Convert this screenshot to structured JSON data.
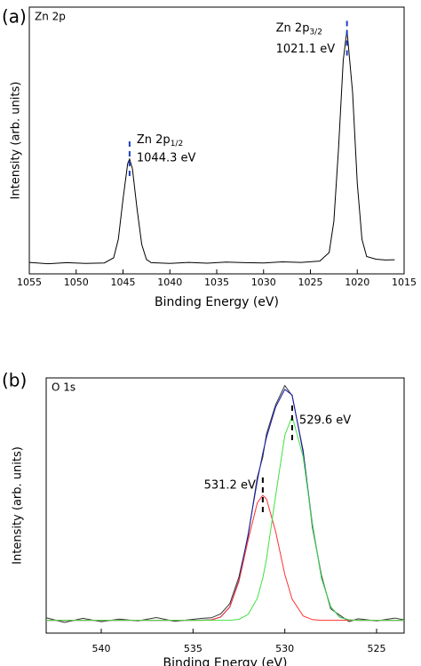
{
  "chart_data": [
    {
      "type": "line",
      "panel_label": "(a)",
      "title": "Zn 2p",
      "xlabel": "Binding Energy (eV)",
      "ylabel": "Intensity (arb. units)",
      "x": [
        1055,
        1053,
        1051,
        1049,
        1047,
        1046,
        1045.5,
        1045,
        1044.5,
        1044.3,
        1044,
        1043.5,
        1043,
        1042.5,
        1042,
        1040,
        1038,
        1036,
        1034,
        1032,
        1030,
        1028,
        1026,
        1024,
        1023,
        1022.5,
        1022,
        1021.5,
        1021.1,
        1020.5,
        1020,
        1019.5,
        1019,
        1018,
        1017,
        1016
      ],
      "series": [
        {
          "color": "#000000",
          "values": [
            4.3,
            3.8,
            4.2,
            3.9,
            4.1,
            6,
            13,
            28,
            41.4,
            43,
            39.5,
            24.3,
            11,
            5.4,
            4.2,
            3.9,
            4.3,
            4.0,
            4.4,
            4.2,
            4.1,
            4.5,
            4.3,
            4.8,
            8,
            19.7,
            47,
            80,
            91.5,
            68,
            34,
            13,
            6.5,
            5.5,
            5.2,
            5.3
          ]
        }
      ],
      "xlim": [
        1055,
        1015
      ],
      "xticks": [
        1055,
        1050,
        1045,
        1040,
        1035,
        1030,
        1025,
        1020,
        1015
      ],
      "ylim": [
        0,
        100
      ],
      "annotations": [
        {
          "name": "Zn 2p",
          "sub": "1/2",
          "text": "1044.3 eV",
          "x": 1044.3,
          "color": "#1f3fbf"
        },
        {
          "name": "Zn 2p",
          "sub": "3/2",
          "text": "1021.1 eV",
          "x": 1021.1,
          "color": "#1f3fbf"
        }
      ]
    },
    {
      "type": "line",
      "panel_label": "(b)",
      "title": "O 1s",
      "xlabel": "Binding Energy (eV)",
      "ylabel": "Intensity (arb. units)",
      "x": [
        543,
        542,
        541,
        540,
        539,
        538,
        537,
        536,
        535,
        534.5,
        534,
        533.5,
        533,
        532.5,
        532,
        531.5,
        531.2,
        531,
        530.5,
        530,
        529.6,
        529,
        528.5,
        528,
        527.5,
        527,
        526.5,
        526,
        525,
        524,
        523.5
      ],
      "series": [
        {
          "color": "#333333",
          "values": [
            6,
            4.2,
            5.8,
            4.5,
            5.5,
            4.8,
            6.1,
            4.6,
            5.4,
            5.8,
            6,
            7.5,
            11.5,
            22,
            38,
            61,
            69,
            78,
            89.5,
            97,
            93,
            71.5,
            41.5,
            22.5,
            9.5,
            7,
            4.5,
            5.6,
            4.8,
            5.9,
            5.2
          ]
        },
        {
          "color": "#1a1aa6",
          "values": [
            5,
            5,
            5,
            5,
            5,
            5,
            5,
            5,
            5,
            5.1,
            5.2,
            6.3,
            10.2,
            20.6,
            38.7,
            59.6,
            70.5,
            76.6,
            88.6,
            95.5,
            93.3,
            70.7,
            42.9,
            21.5,
            10.3,
            6.2,
            5.2,
            5,
            5,
            5,
            5
          ]
        },
        {
          "color": "#ff3030",
          "values": [
            5,
            5,
            5,
            5,
            5,
            5,
            5,
            5,
            5,
            5,
            5.2,
            6.3,
            10.2,
            20.2,
            36.4,
            51,
            54,
            52.6,
            39.8,
            23,
            13.3,
            6.7,
            5.3,
            5,
            5,
            5,
            5,
            5,
            5,
            5,
            5
          ]
        },
        {
          "color": "#40e040",
          "values": [
            5,
            5,
            5,
            5,
            5,
            5,
            5,
            5,
            5,
            5,
            5,
            5,
            5,
            5.4,
            7.3,
            13.6,
            21.5,
            29,
            53.8,
            77.5,
            85,
            69,
            42.6,
            21.5,
            10.3,
            6.2,
            5.2,
            5,
            5,
            5,
            5
          ]
        }
      ],
      "xlim": [
        543,
        523.5
      ],
      "xticks": [
        540,
        535,
        530,
        525
      ],
      "ylim": [
        0,
        100
      ],
      "annotations": [
        {
          "text": "531.2 eV",
          "x": 531.2,
          "color": "#000000"
        },
        {
          "text": "529.6 eV",
          "x": 529.6,
          "color": "#000000"
        }
      ]
    }
  ]
}
